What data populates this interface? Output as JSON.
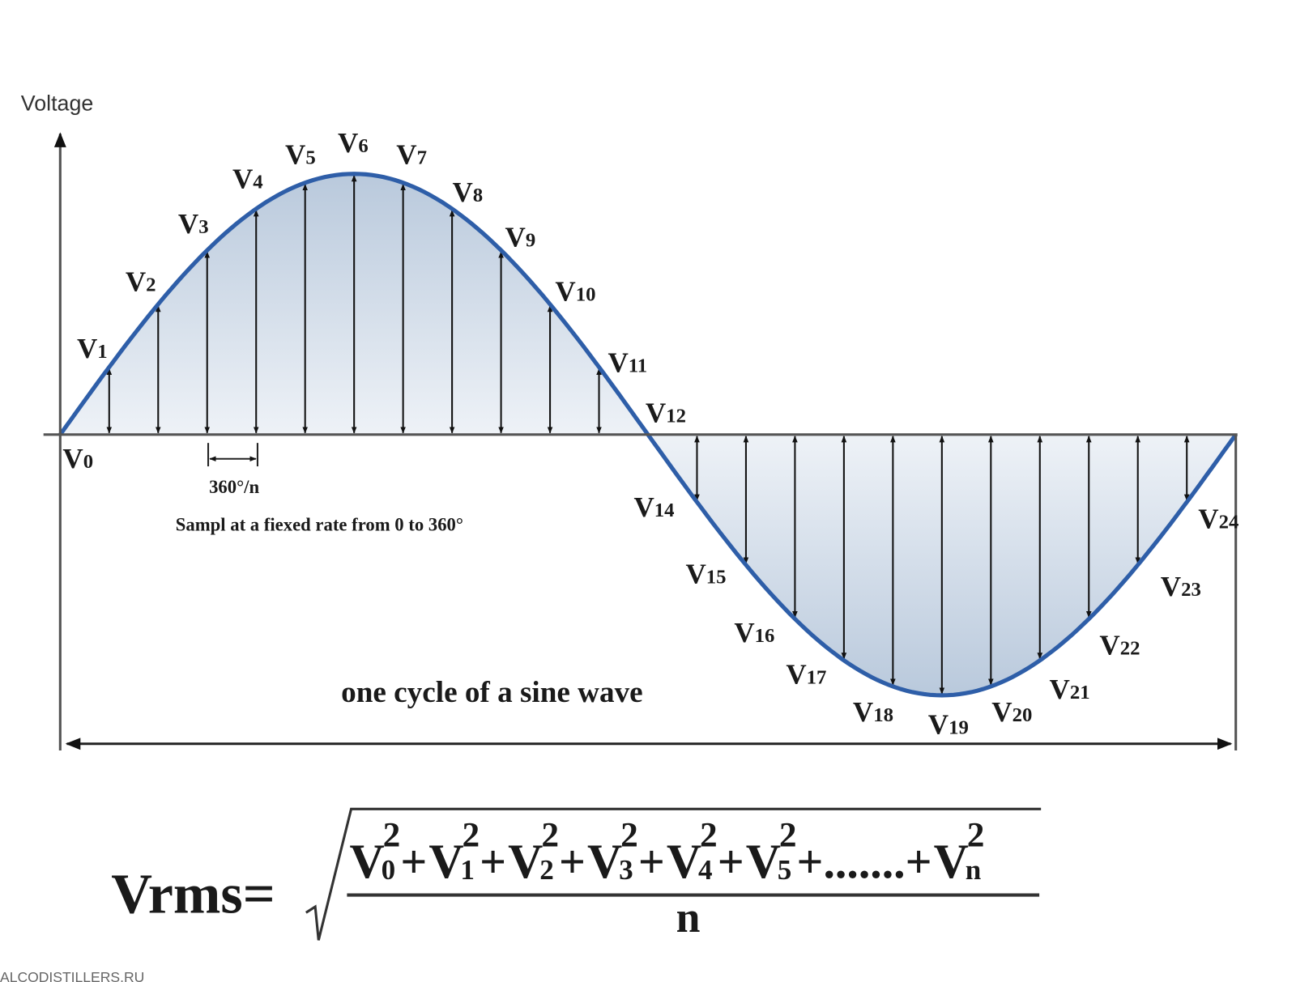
{
  "axis_label": "Voltage",
  "samples": [
    {
      "main": "V",
      "sub": "0"
    },
    {
      "main": "V",
      "sub": "1"
    },
    {
      "main": "V",
      "sub": "2"
    },
    {
      "main": "V",
      "sub": "3"
    },
    {
      "main": "V",
      "sub": "4"
    },
    {
      "main": "V",
      "sub": "5"
    },
    {
      "main": "V",
      "sub": "6"
    },
    {
      "main": "V",
      "sub": "7"
    },
    {
      "main": "V",
      "sub": "8"
    },
    {
      "main": "V",
      "sub": "9"
    },
    {
      "main": "V",
      "sub": "10"
    },
    {
      "main": "V",
      "sub": "11"
    },
    {
      "main": "V",
      "sub": "12"
    },
    {
      "main": "V",
      "sub": "14"
    },
    {
      "main": "V",
      "sub": "15"
    },
    {
      "main": "V",
      "sub": "16"
    },
    {
      "main": "V",
      "sub": "17"
    },
    {
      "main": "V",
      "sub": "18"
    },
    {
      "main": "V",
      "sub": "19"
    },
    {
      "main": "V",
      "sub": "20"
    },
    {
      "main": "V",
      "sub": "21"
    },
    {
      "main": "V",
      "sub": "22"
    },
    {
      "main": "V",
      "sub": "23"
    },
    {
      "main": "V",
      "sub": "24"
    }
  ],
  "step_label": "360°/n",
  "sampling_note": "Sampl at a fiexed rate from 0 to 360°",
  "cycle_label": "one cycle of a sine wave",
  "formula": {
    "lhs": "Vrms=",
    "numerator": [
      {
        "main": "V",
        "sub": "0",
        "sup": "2"
      },
      {
        "text": "+"
      },
      {
        "main": "V",
        "sub": "1",
        "sup": "2"
      },
      {
        "text": "+"
      },
      {
        "main": "V",
        "sub": "2",
        "sup": "2"
      },
      {
        "text": "+"
      },
      {
        "main": "V",
        "sub": "3",
        "sup": "2"
      },
      {
        "text": "+"
      },
      {
        "main": "V",
        "sub": "4",
        "sup": "2"
      },
      {
        "text": "+"
      },
      {
        "main": "V",
        "sub": "5",
        "sup": "2"
      },
      {
        "text": "+.......+"
      },
      {
        "main": "V",
        "sub": "n",
        "sup": "2"
      }
    ],
    "denominator": "n"
  },
  "watermark": "ALCODISTILLERS.RU"
}
